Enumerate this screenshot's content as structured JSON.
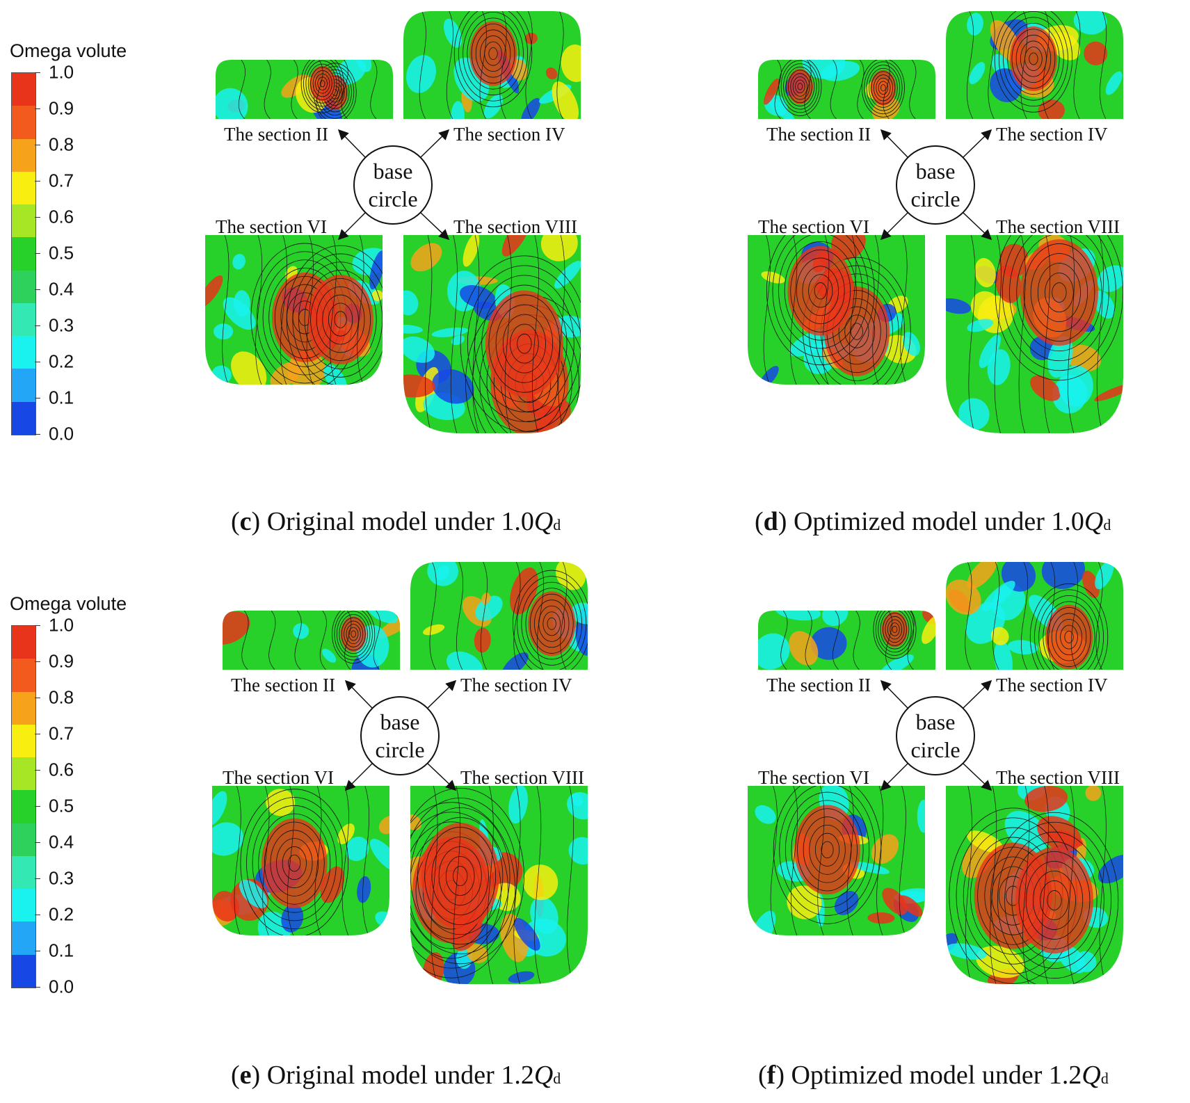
{
  "legend": {
    "title": "Omega volute",
    "ticks": [
      "1.0",
      "0.9",
      "0.8",
      "0.7",
      "0.6",
      "0.5",
      "0.4",
      "0.3",
      "0.2",
      "0.1",
      "0.0"
    ],
    "colors": [
      "#e8341a",
      "#f25a1e",
      "#f7a21b",
      "#f8ef10",
      "#a6e624",
      "#27d12a",
      "#2fd15d",
      "#34e8b4",
      "#19f2ee",
      "#22a6f5",
      "#1748e6"
    ]
  },
  "center_label": {
    "line1": "base",
    "line2": "circle"
  },
  "panels": [
    {
      "id": "c",
      "section_labels": [
        "The section II",
        "The section IV",
        "The section VI",
        "The section VIII"
      ],
      "caption": {
        "letter": "c",
        "text": " Original model under 1.0",
        "q": "Q",
        "sub": "d"
      }
    },
    {
      "id": "d",
      "section_labels": [
        "The section II",
        "The section IV",
        "The section VI",
        "The section VIII"
      ],
      "caption": {
        "letter": "d",
        "text": " Optimized model under 1.0",
        "q": "Q",
        "sub": "d"
      }
    },
    {
      "id": "e",
      "section_labels": [
        "The section II",
        "The section IV",
        "The section VI",
        "The section VIII"
      ],
      "caption": {
        "letter": "e",
        "text": " Original model under 1.2",
        "q": "Q",
        "sub": "d"
      }
    },
    {
      "id": "f",
      "section_labels": [
        "The section II",
        "The section IV",
        "The section VI",
        "The section VIII"
      ],
      "caption": {
        "letter": "f",
        "text": " Optimized model under 1.2",
        "q": "Q",
        "sub": "d"
      }
    }
  ],
  "colors": {
    "background": "#27d12a",
    "accent_cyan": "#19f2ee",
    "accent_blue": "#1748e6",
    "accent_red": "#e8341a",
    "accent_orange": "#f7a21b",
    "accent_yellow": "#f8ef10",
    "streamline": "#111111"
  }
}
